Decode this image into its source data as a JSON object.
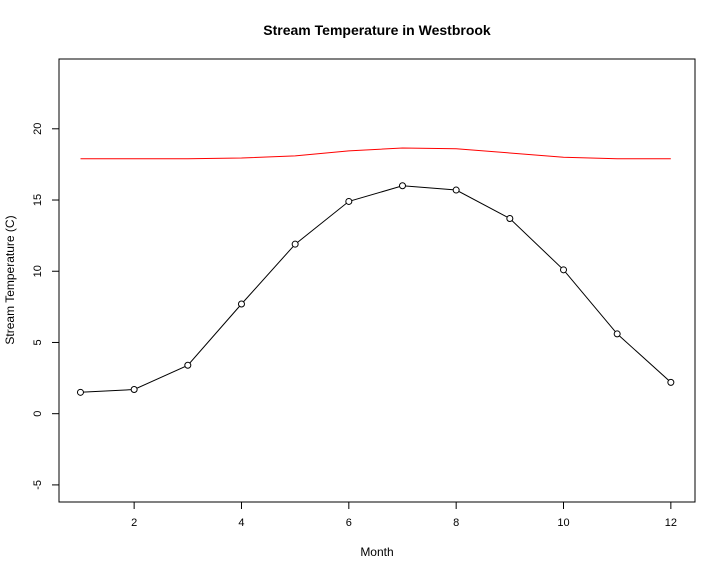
{
  "chart_data": {
    "type": "line",
    "title": "Stream Temperature in Westbrook",
    "xlabel": "Month",
    "ylabel": "Stream Temperature (C)",
    "xlim": [
      0.6,
      12.45
    ],
    "ylim": [
      -6.2,
      24.9
    ],
    "x_ticks": [
      2,
      4,
      6,
      8,
      10,
      12
    ],
    "y_ticks": [
      -5,
      0,
      5,
      10,
      15,
      20
    ],
    "grid": false,
    "legend": "none",
    "series": [
      {
        "color": "#000000",
        "markers": "open-circle",
        "x": [
          1,
          2,
          3,
          4,
          5,
          6,
          7,
          8,
          9,
          10,
          11,
          12
        ],
        "y": [
          1.5,
          1.7,
          3.4,
          7.7,
          11.9,
          14.9,
          16.0,
          15.7,
          13.7,
          10.1,
          5.6,
          2.2
        ]
      },
      {
        "color": "#ff0000",
        "markers": "none",
        "x": [
          1,
          2,
          3,
          4,
          5,
          6,
          7,
          8,
          9,
          10,
          11,
          12
        ],
        "y": [
          17.9,
          17.9,
          17.9,
          17.95,
          18.1,
          18.45,
          18.65,
          18.6,
          18.3,
          18.0,
          17.9,
          17.9
        ]
      }
    ]
  }
}
